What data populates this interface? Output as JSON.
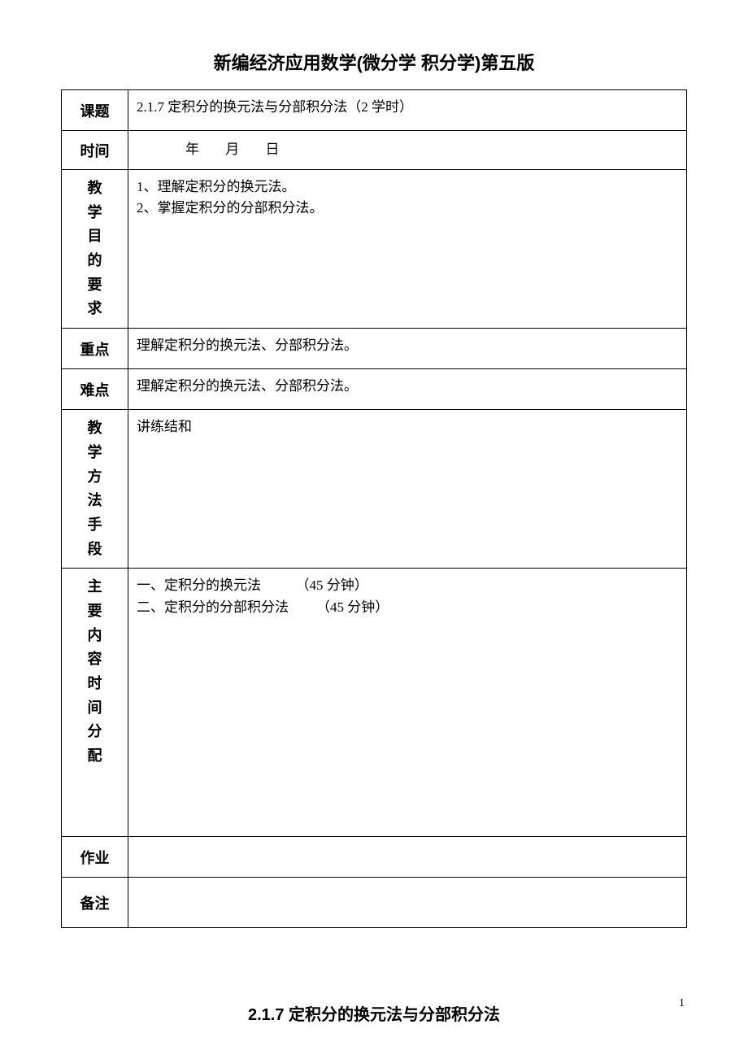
{
  "title": "新编经济应用数学(微分学 积分学)第五版",
  "rows": {
    "topic": {
      "label": "课题",
      "content": "2.1.7 定积分的换元法与分部积分法（2 学时）"
    },
    "date": {
      "label": "时间",
      "year": "年",
      "month": "月",
      "day": "日"
    },
    "goal": {
      "labels": [
        "教",
        "学",
        "目",
        "的",
        "要",
        "求"
      ],
      "content": "1、理解定积分的换元法。\n2、掌握定积分的分部积分法。"
    },
    "focus": {
      "label": "重点",
      "content": "理解定积分的换元法、分部积分法。"
    },
    "difficulty": {
      "label": "难点",
      "content": "理解定积分的换元法、分部积分法。"
    },
    "method": {
      "labels": [
        "教",
        "学",
        "方",
        "法",
        "手",
        "段"
      ],
      "content": "讲练结和"
    },
    "mainContent": {
      "labels": [
        "主",
        "要",
        "内",
        "容",
        "时",
        "间",
        "分",
        "配"
      ],
      "line1": "一、定积分的换元法          （45 分钟）",
      "line2": "二、定积分的分部积分法        （45 分钟）"
    },
    "homework": {
      "label": "作业",
      "content": ""
    },
    "notes": {
      "label": "备注",
      "content": ""
    }
  },
  "footerTitle": "2.1.7 定积分的换元法与分部积分法",
  "pageNumber": "1"
}
